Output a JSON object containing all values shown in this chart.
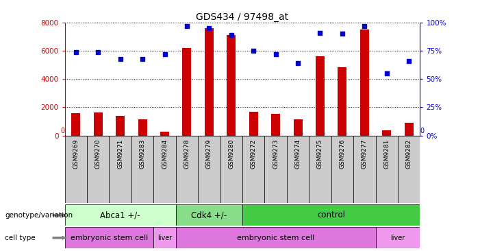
{
  "title": "GDS434 / 97498_at",
  "samples": [
    "GSM9269",
    "GSM9270",
    "GSM9271",
    "GSM9283",
    "GSM9284",
    "GSM9278",
    "GSM9279",
    "GSM9280",
    "GSM9272",
    "GSM9273",
    "GSM9274",
    "GSM9275",
    "GSM9276",
    "GSM9277",
    "GSM9281",
    "GSM9282"
  ],
  "counts": [
    1600,
    1620,
    1380,
    1150,
    280,
    6200,
    7600,
    7100,
    1700,
    1520,
    1130,
    5600,
    4820,
    7500,
    380,
    900
  ],
  "percentiles": [
    74,
    74,
    68,
    68,
    72,
    97,
    95,
    89,
    75,
    72,
    64,
    91,
    90,
    97,
    55,
    66
  ],
  "ylim_left": [
    0,
    8000
  ],
  "ylim_right": [
    0,
    100
  ],
  "yticks_left": [
    0,
    2000,
    4000,
    6000,
    8000
  ],
  "yticks_right": [
    0,
    25,
    50,
    75,
    100
  ],
  "bar_color": "#cc0000",
  "dot_color": "#0000cc",
  "genotype_groups": [
    {
      "label": "Abca1 +/-",
      "start": 0,
      "end": 5,
      "color": "#ccffcc"
    },
    {
      "label": "Cdk4 +/-",
      "start": 5,
      "end": 8,
      "color": "#88dd88"
    },
    {
      "label": "control",
      "start": 8,
      "end": 16,
      "color": "#44cc44"
    }
  ],
  "celltype_groups": [
    {
      "label": "embryonic stem cell",
      "start": 0,
      "end": 4,
      "color": "#dd77dd"
    },
    {
      "label": "liver",
      "start": 4,
      "end": 5,
      "color": "#ee99ee"
    },
    {
      "label": "embryonic stem cell",
      "start": 5,
      "end": 14,
      "color": "#dd77dd"
    },
    {
      "label": "liver",
      "start": 14,
      "end": 16,
      "color": "#ee99ee"
    }
  ],
  "bg_color": "#ffffff",
  "tick_area_bg": "#cccccc",
  "bar_width": 0.4
}
